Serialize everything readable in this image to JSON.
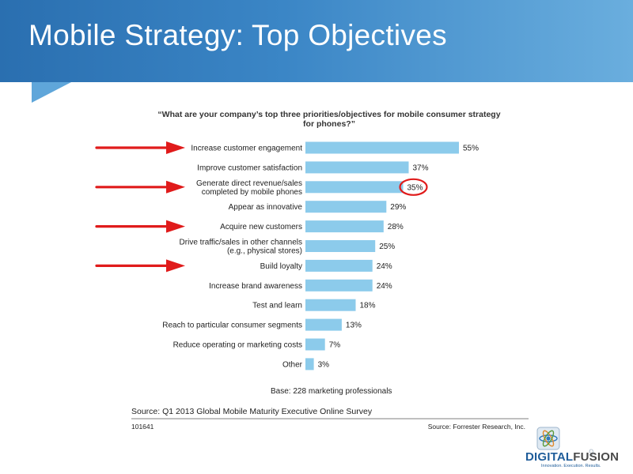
{
  "slide": {
    "title": "Mobile Strategy: Top Objectives",
    "page_number": "9"
  },
  "logo": {
    "name_part1": "DIGITAL",
    "name_part2": "FUSION",
    "tagline": "Innovation. Execution. Results."
  },
  "colors": {
    "bar": "#8ccbeb",
    "arrow": "#e01b1b",
    "circle": "#e01b1b",
    "header": "#2f78bb"
  },
  "chart_data": {
    "type": "bar",
    "orientation": "horizontal",
    "title": "“What are your company’s top three priorities/objectives for mobile consumer strategy for phones?”",
    "title_lines": [
      "“What are your company’s top three priorities/objectives for mobile consumer strategy",
      "for phones?”"
    ],
    "categories": [
      [
        "Increase customer engagement"
      ],
      [
        "Improve customer satisfaction"
      ],
      [
        "Generate direct revenue/sales",
        "completed by mobile phones"
      ],
      [
        "Appear as innovative"
      ],
      [
        "Acquire new customers"
      ],
      [
        "Drive traffic/sales in other channels",
        "(e.g., physical stores)"
      ],
      [
        "Build loyalty"
      ],
      [
        "Increase brand awareness"
      ],
      [
        "Test and learn"
      ],
      [
        "Reach to particular consumer segments"
      ],
      [
        "Reduce operating or marketing costs"
      ],
      [
        "Other"
      ]
    ],
    "values": [
      55,
      37,
      35,
      29,
      28,
      25,
      24,
      24,
      18,
      13,
      7,
      3
    ],
    "value_labels": [
      "55%",
      "37%",
      "35%",
      "29%",
      "28%",
      "25%",
      "24%",
      "24%",
      "18%",
      "13%",
      "7%",
      "3%"
    ],
    "unit": "%",
    "xlim": [
      0,
      55
    ],
    "highlighted_arrows": [
      0,
      2,
      4,
      6
    ],
    "highlighted_circle": 2,
    "base_note": "Base: 228 marketing professionals",
    "source_left": "Source: Q1 2013 Global Mobile Maturity Executive Online Survey",
    "id_code": "101641",
    "source_right": "Source: Forrester Research, Inc."
  }
}
